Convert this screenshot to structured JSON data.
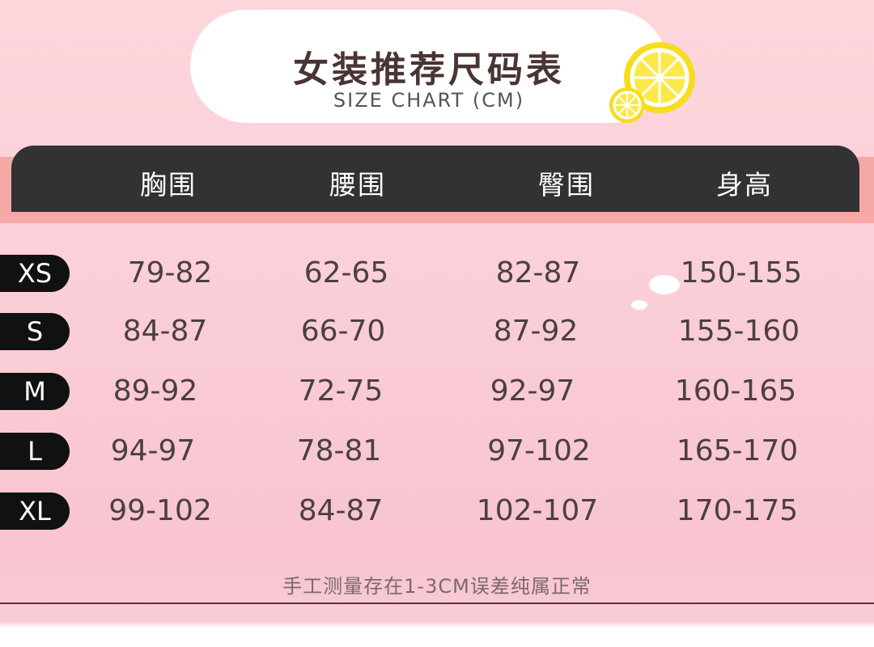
{
  "title": {
    "cn": "女装推荐尺码表",
    "en": "SIZE CHART (CM)"
  },
  "colors": {
    "header_bar": "#333232",
    "band": "#f6a8a6",
    "background": "#fcd3da",
    "lemon": "#f7dc1e"
  },
  "table": {
    "headers": [
      "胸围",
      "腰围",
      "臀围",
      "身高"
    ],
    "rows": [
      {
        "size": "XS",
        "values": [
          "79-82",
          "62-65",
          "82-87",
          "150-155"
        ]
      },
      {
        "size": "S",
        "values": [
          "84-87",
          "66-70",
          "87-92",
          "155-160"
        ]
      },
      {
        "size": "M",
        "values": [
          "89-92",
          "72-75",
          "92-97",
          "160-165"
        ]
      },
      {
        "size": "L",
        "values": [
          "94-97",
          "78-81",
          "97-102",
          "165-170"
        ]
      },
      {
        "size": "XL",
        "values": [
          "99-102",
          "84-87",
          "102-107",
          "170-175"
        ]
      }
    ]
  },
  "note": "手工测量存在1-3CM误差纯属正常"
}
